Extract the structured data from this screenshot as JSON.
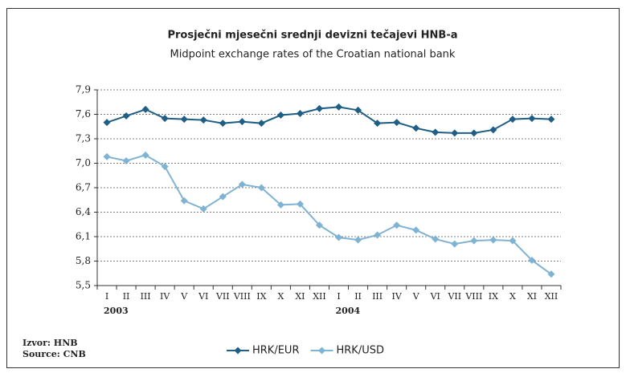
{
  "chart_data": {
    "type": "line",
    "title": "Prosječni mjesečni srednji devizni tečajevi HNB-a",
    "subtitle": "Midpoint exchange rates of the Croatian national bank",
    "categories": [
      "I",
      "II",
      "III",
      "IV",
      "V",
      "VI",
      "VII",
      "VIII",
      "IX",
      "X",
      "XI",
      "XII",
      "I",
      "II",
      "III",
      "IV",
      "V",
      "VI",
      "VII",
      "VIII",
      "IX",
      "X",
      "XI",
      "XII"
    ],
    "year_labels": [
      "2003",
      "2004"
    ],
    "series": [
      {
        "name": "HRK/EUR",
        "color": "#1f5f85",
        "values": [
          7.5,
          7.58,
          7.66,
          7.55,
          7.54,
          7.53,
          7.49,
          7.51,
          7.49,
          7.59,
          7.61,
          7.67,
          7.69,
          7.65,
          7.49,
          7.5,
          7.43,
          7.38,
          7.37,
          7.37,
          7.41,
          7.54,
          7.55,
          7.54
        ]
      },
      {
        "name": "HRK/USD",
        "color": "#7fb3d3",
        "values": [
          7.08,
          7.03,
          7.1,
          6.96,
          6.54,
          6.44,
          6.59,
          6.74,
          6.7,
          6.49,
          6.5,
          6.24,
          6.09,
          6.06,
          6.12,
          6.24,
          6.18,
          6.07,
          6.01,
          6.05,
          6.06,
          6.05,
          5.81,
          5.64
        ]
      }
    ],
    "ylim": [
      5.5,
      7.9
    ],
    "yticks": [
      {
        "value": 5.5,
        "label": "5,5"
      },
      {
        "value": 5.8,
        "label": "5,8"
      },
      {
        "value": 6.1,
        "label": "6,1"
      },
      {
        "value": 6.4,
        "label": "6,4"
      },
      {
        "value": 6.7,
        "label": "6,7"
      },
      {
        "value": 7.0,
        "label": "7,0"
      },
      {
        "value": 7.3,
        "label": "7,3"
      },
      {
        "value": 7.6,
        "label": "7,6"
      },
      {
        "value": 7.9,
        "label": "7,9"
      }
    ],
    "grid": true,
    "source": [
      "Izvor: HNB",
      "Source: CNB"
    ]
  }
}
